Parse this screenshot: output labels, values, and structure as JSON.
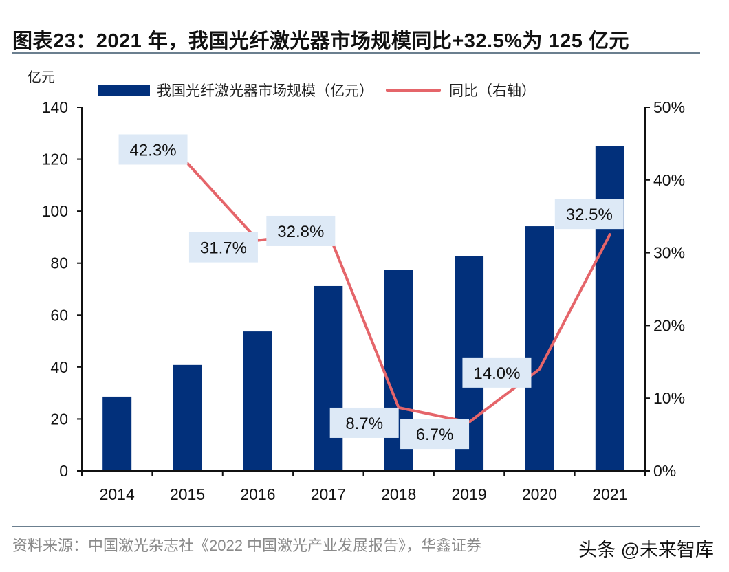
{
  "header": {
    "title": "图表23：2021 年，我国光纤激光器市场规模同比+32.5%为 125 亿元",
    "unit_label": "亿元"
  },
  "legend": {
    "bar_label": "我国光纤激光器市场规模（亿元）",
    "line_label": "同比（右轴）"
  },
  "footer": {
    "source": "资料来源：中国激光杂志社《2022 中国激光产业发展报告》，华鑫证券",
    "watermark": "头条 @未来智库"
  },
  "colors": {
    "bar": "#02307b",
    "line": "#e5656a",
    "label_bg": "#dde9f6"
  },
  "chart_data": {
    "type": "bar",
    "title": "2021 年，我国光纤激光器市场规模同比+32.5%为 125 亿元",
    "xlabel": "",
    "ylabel": "亿元",
    "y2label": "同比（右轴）",
    "categories": [
      "2014",
      "2015",
      "2016",
      "2017",
      "2018",
      "2019",
      "2020",
      "2021"
    ],
    "series": [
      {
        "name": "我国光纤激光器市场规模（亿元）",
        "type": "bar",
        "axis": "left",
        "values": [
          28.6,
          40.8,
          53.7,
          71.2,
          77.5,
          82.6,
          94.2,
          125
        ]
      },
      {
        "name": "同比（右轴）",
        "type": "line",
        "axis": "right",
        "values": [
          null,
          42.3,
          31.7,
          32.8,
          8.7,
          6.7,
          14.0,
          32.5
        ],
        "labels": [
          "",
          "42.3%",
          "31.7%",
          "32.8%",
          "8.7%",
          "6.7%",
          "14.0%",
          "32.5%"
        ]
      }
    ],
    "ylim": [
      0,
      140
    ],
    "yticks": [
      "0",
      "20",
      "40",
      "60",
      "80",
      "100",
      "120",
      "140"
    ],
    "y2lim": [
      0,
      50
    ],
    "y2ticks": [
      "0%",
      "10%",
      "20%",
      "30%",
      "40%",
      "50%"
    ],
    "grid": false,
    "legend_position": "top"
  }
}
